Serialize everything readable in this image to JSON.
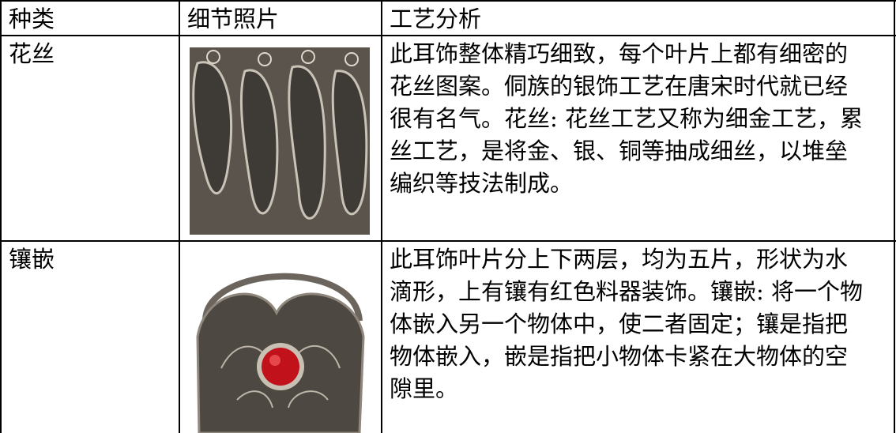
{
  "table": {
    "header": [
      "种类",
      "细节照片",
      "工艺分析"
    ],
    "rows": [
      [
        "花丝",
        "此耳饰整体精巧细致，每个叶片上都有细密的花丝图案。侗族的银饰工艺在唐宋时代就已经很有名气。花丝: 花丝工艺又称为细金工艺，累丝工艺，是将金、银、铜等抽成细丝，以堆垒编织等技法制成。"
      ],
      [
        "镶嵌",
        "此耳饰叶片分上下两层，均为五片，形状为水滴形，上有镶有红色料器装饰。镶嵌: 将一个物体嵌入另一个物体中，使二者固定；镶是指把物体嵌入，嵌是指把小物体卡紧在大物体的空隙里。"
      ]
    ]
  }
}
